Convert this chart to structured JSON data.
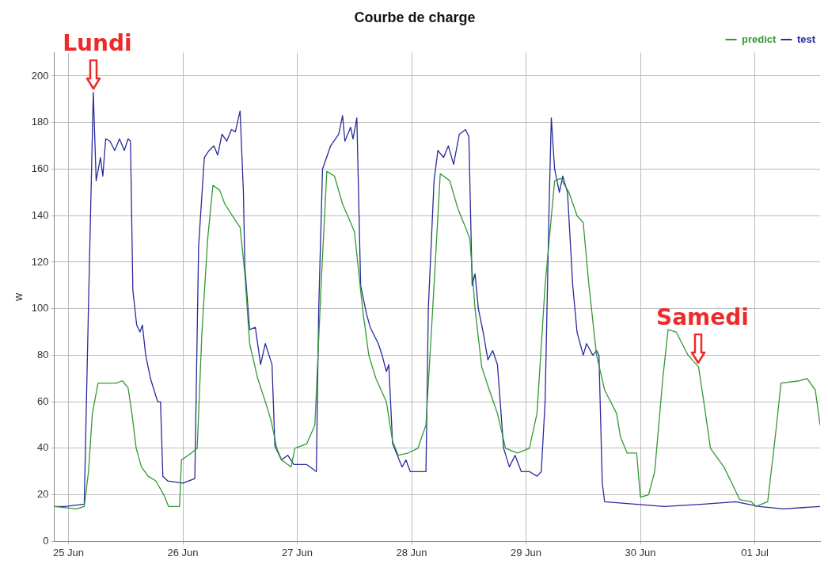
{
  "chart_data": {
    "type": "line",
    "title": "Courbe de charge",
    "ylabel": "w",
    "xlim": [
      "--06-24T21:00",
      "--07-01T13:42"
    ],
    "xticks": [
      {
        "value": "--06-25",
        "label": "25 Jun"
      },
      {
        "value": "--06-26",
        "label": "26 Jun"
      },
      {
        "value": "--06-27",
        "label": "27 Jun"
      },
      {
        "value": "--06-28",
        "label": "28 Jun"
      },
      {
        "value": "--06-29",
        "label": "29 Jun"
      },
      {
        "value": "--06-30",
        "label": "30 Jun"
      },
      {
        "value": "--07-01",
        "label": "01 Jul"
      }
    ],
    "ylim": [
      0,
      210
    ],
    "yticks": [
      0,
      20,
      40,
      60,
      80,
      100,
      120,
      140,
      160,
      180,
      200
    ],
    "grid": true,
    "legend": "top right",
    "marker": "none",
    "line_style": "solid",
    "annotations": [
      {
        "text": "Lundi",
        "x": "--06-25T05:12",
        "y": 193
      },
      {
        "text": "Samedi",
        "x": "--06-30T12:12",
        "y": 75
      }
    ],
    "series": [
      {
        "name": "predict",
        "color": "#339933",
        "x": [
          "--06-24T21:00",
          "--06-25T01:42",
          "--06-25T03:18",
          "--06-25T04:12",
          "--06-25T05:00",
          "--06-25T06:12",
          "--06-25T10:00",
          "--06-25T11:18",
          "--06-25T12:30",
          "--06-25T13:18",
          "--06-25T14:12",
          "--06-25T15:18",
          "--06-25T16:42",
          "--06-25T18:18",
          "--06-25T20:00",
          "--06-25T21:00",
          "--06-25T23:18",
          "--06-25T23:42",
          "--06-26T01:48",
          "--06-26T03:00",
          "--06-26T04:00",
          "--06-26T05:12",
          "--06-26T06:18",
          "--06-26T07:42",
          "--06-26T08:48",
          "--06-26T11:00",
          "--06-26T12:00",
          "--06-26T13:00",
          "--06-26T14:00",
          "--06-26T15:42",
          "--06-26T17:18",
          "--06-26T18:30",
          "--06-26T19:42",
          "--06-26T20:42",
          "--06-26T22:42",
          "--06-26T23:30",
          "--06-27T02:00",
          "--06-27T03:42",
          "--06-27T05:00",
          "--06-27T06:12",
          "--06-27T07:48",
          "--06-27T09:30",
          "--06-27T11:12",
          "--06-27T12:00",
          "--06-27T13:42",
          "--06-27T15:00",
          "--06-27T16:30",
          "--06-27T18:42",
          "--06-27T20:00",
          "--06-27T21:12",
          "--06-27T23:18",
          "--06-28T01:18",
          "--06-28T03:00",
          "--06-28T04:42",
          "--06-28T06:00",
          "--06-28T08:00",
          "--06-28T09:42",
          "--06-28T11:18",
          "--06-28T12:12",
          "--06-28T13:18",
          "--06-28T14:42",
          "--06-28T16:18",
          "--06-28T18:00",
          "--06-28T19:42",
          "--06-28T22:12",
          "--06-29T00:42",
          "--06-29T02:18",
          "--06-29T04:00",
          "--06-29T06:00",
          "--06-29T07:18",
          "--06-29T09:00",
          "--06-29T10:42",
          "--06-29T12:00",
          "--06-29T13:12",
          "--06-29T14:48",
          "--06-29T16:30",
          "--06-29T19:00",
          "--06-29T19:48",
          "--06-29T21:12",
          "--06-29T23:12",
          "--06-30T00:00",
          "--06-30T01:42",
          "--06-30T03:00",
          "--06-30T04:42",
          "--06-30T05:48",
          "--06-30T07:30",
          "--06-30T10:00",
          "--06-30T12:12",
          "--06-30T13:18",
          "--06-30T14:42",
          "--06-30T17:30",
          "--06-30T19:12",
          "--06-30T20:48",
          "--06-30T23:18",
          "--07-01T00:12",
          "--07-01T02:42",
          "--07-01T04:18",
          "--07-01T05:30",
          "--07-01T09:18",
          "--07-01T11:00",
          "--07-01T12:42",
          "--07-01T13:42"
        ],
        "values": [
          15,
          14,
          15,
          30,
          55,
          68,
          68,
          69,
          66,
          55,
          40,
          32,
          28,
          26,
          20,
          15,
          15,
          35,
          38,
          40,
          90,
          130,
          153,
          151,
          145,
          138,
          135,
          115,
          85,
          70,
          60,
          52,
          40,
          35,
          32,
          40,
          42,
          50,
          110,
          159,
          157,
          145,
          137,
          133,
          100,
          80,
          70,
          60,
          43,
          37,
          38,
          40,
          50,
          110,
          158,
          155,
          143,
          135,
          130,
          100,
          75,
          65,
          55,
          40,
          38,
          40,
          55,
          110,
          155,
          156,
          150,
          140,
          137,
          110,
          80,
          65,
          55,
          45,
          38,
          38,
          19,
          20,
          30,
          70,
          91,
          90,
          80,
          75,
          60,
          40,
          32,
          25,
          18,
          17,
          15,
          17,
          45,
          68,
          69,
          70,
          65,
          50
        ]
      },
      {
        "name": "test",
        "color": "#2a2a9c",
        "x": [
          "--06-24T21:00",
          "--06-24T23:12",
          "--06-25T03:18",
          "--06-25T04:12",
          "--06-25T05:12",
          "--06-25T05:48",
          "--06-25T06:42",
          "--06-25T07:12",
          "--06-25T07:48",
          "--06-25T08:42",
          "--06-25T09:42",
          "--06-25T10:42",
          "--06-25T11:42",
          "--06-25T12:30",
          "--06-25T13:00",
          "--06-25T13:30",
          "--06-25T14:18",
          "--06-25T15:00",
          "--06-25T15:30",
          "--06-25T16:12",
          "--06-25T17:12",
          "--06-25T17:48",
          "--06-25T18:42",
          "--06-25T19:18",
          "--06-25T19:48",
          "--06-25T20:48",
          "--06-26T00:00",
          "--06-26T02:30",
          "--06-26T03:18",
          "--06-26T04:30",
          "--06-26T05:30",
          "--06-26T06:30",
          "--06-26T07:18",
          "--06-26T08:12",
          "--06-26T09:12",
          "--06-26T10:12",
          "--06-26T11:00",
          "--06-26T12:00",
          "--06-26T12:42",
          "--06-26T13:00",
          "--06-26T14:00",
          "--06-26T15:12",
          "--06-26T16:18",
          "--06-26T17:18",
          "--06-26T18:42",
          "--06-26T19:18",
          "--06-26T20:42",
          "--06-26T22:00",
          "--06-26T23:18",
          "--06-27T02:00",
          "--06-27T04:00",
          "--06-27T04:30",
          "--06-27T05:18",
          "--06-27T07:00",
          "--06-27T08:42",
          "--06-27T09:30",
          "--06-27T10:00",
          "--06-27T11:12",
          "--06-27T11:42",
          "--06-27T12:30",
          "--06-27T13:18",
          "--06-27T14:30",
          "--06-27T15:18",
          "--06-27T17:00",
          "--06-27T17:48",
          "--06-27T18:42",
          "--06-27T19:12",
          "--06-27T20:00",
          "--06-27T21:12",
          "--06-27T22:00",
          "--06-27T22:48",
          "--06-27T23:42",
          "--06-28T03:00",
          "--06-28T03:30",
          "--06-28T04:42",
          "--06-28T05:30",
          "--06-28T06:42",
          "--06-28T07:42",
          "--06-28T08:48",
          "--06-28T10:00",
          "--06-28T11:18",
          "--06-28T12:00",
          "--06-28T12:42",
          "--06-28T13:18",
          "--06-28T14:00",
          "--06-28T15:00",
          "--06-28T16:00",
          "--06-28T17:00",
          "--06-28T18:00",
          "--06-28T19:18",
          "--06-28T20:30",
          "--06-28T21:42",
          "--06-28T23:00",
          "--06-29T00:42",
          "--06-29T02:18",
          "--06-29T03:12",
          "--06-29T04:00",
          "--06-29T04:48",
          "--06-29T05:18",
          "--06-29T06:00",
          "--06-29T07:00",
          "--06-29T07:42",
          "--06-29T08:42",
          "--06-29T09:48",
          "--06-29T10:42",
          "--06-29T12:00",
          "--06-29T12:42",
          "--06-29T14:00",
          "--06-29T14:48",
          "--06-29T15:18",
          "--06-29T16:00",
          "--06-29T16:30",
          "--06-30T05:00",
          "--06-30T13:18",
          "--06-30T20:00",
          "--07-01T01:00",
          "--07-01T06:00",
          "--07-01T13:42"
        ],
        "values": [
          15,
          15,
          16,
          102,
          193,
          155,
          165,
          157,
          173,
          172,
          168,
          173,
          168,
          173,
          172,
          108,
          93,
          90,
          93,
          80,
          70,
          66,
          60,
          60,
          28,
          26,
          25,
          27,
          127,
          165,
          168,
          170,
          166,
          175,
          172,
          177,
          176,
          185,
          150,
          118,
          91,
          92,
          76,
          85,
          76,
          41,
          35,
          37,
          33,
          33,
          30,
          100,
          160,
          170,
          175,
          183,
          172,
          178,
          173,
          182,
          110,
          98,
          92,
          85,
          80,
          73,
          76,
          42,
          36,
          32,
          35,
          30,
          30,
          100,
          155,
          168,
          165,
          170,
          162,
          175,
          177,
          174,
          110,
          115,
          100,
          90,
          78,
          82,
          76,
          40,
          32,
          37,
          30,
          30,
          28,
          30,
          60,
          140,
          182,
          160,
          150,
          157,
          150,
          110,
          90,
          80,
          85,
          80,
          82,
          80,
          25,
          17,
          15,
          16,
          17,
          15,
          14,
          15
        ]
      }
    ]
  }
}
